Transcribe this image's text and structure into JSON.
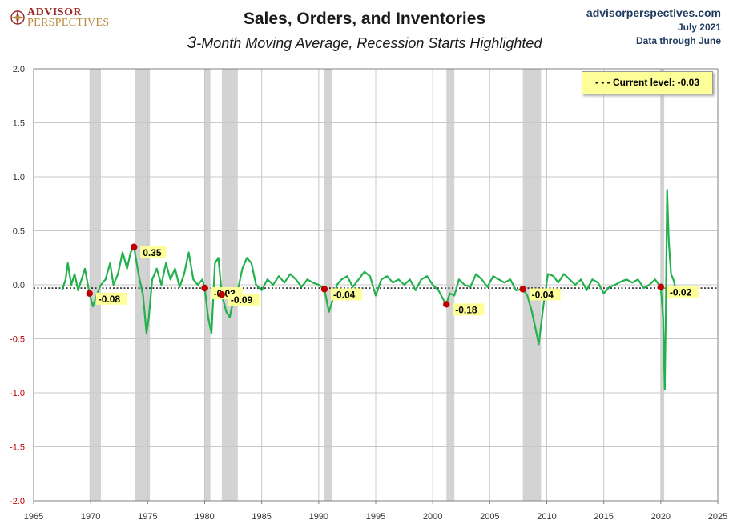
{
  "header": {
    "title": "Sales, Orders, and Inventories",
    "subtitle_lead": "3",
    "subtitle_rest": "-Month Moving Average, Recession Starts Highlighted"
  },
  "logo": {
    "line1": "ADVISOR",
    "line2": "PERSPECTIVES",
    "icon": "compass-rose-icon",
    "color": "#9a2b2b"
  },
  "source": {
    "site": "advisorperspectives.com",
    "date": "July 2021",
    "through": "Data through June"
  },
  "legend": {
    "current_level": "- - -  Current level:  -0.03"
  },
  "chart_data": {
    "type": "line",
    "title": "Sales, Orders, and Inventories",
    "subtitle": "3-Month Moving Average, Recession Starts Highlighted",
    "xlabel": "",
    "ylabel": "",
    "xlim": [
      1965,
      2025
    ],
    "ylim": [
      -2.0,
      2.0
    ],
    "x_ticks": [
      "1965",
      "1970",
      "1975",
      "1980",
      "1985",
      "1990",
      "1995",
      "2000",
      "2005",
      "2010",
      "2015",
      "2020",
      "2025"
    ],
    "y_ticks": [
      "2.0",
      "1.5",
      "1.0",
      "0.5",
      "0.0",
      "-0.5",
      "-1.0",
      "-1.5",
      "-2.0"
    ],
    "grid": true,
    "legend_position": "top-right",
    "current_level": -0.03,
    "colors": {
      "line": "#22b14c",
      "marker": "#c00000",
      "recession": "#d3d3d3",
      "label_bg": "#ffff99",
      "grid": "#c8c8c8"
    },
    "recessions": [
      [
        1969.9,
        1970.9
      ],
      [
        1973.9,
        1975.2
      ],
      [
        1980.0,
        1980.5
      ],
      [
        1981.5,
        1982.9
      ],
      [
        1990.5,
        1991.2
      ],
      [
        2001.2,
        2001.9
      ],
      [
        2007.9,
        2009.5
      ],
      [
        2020.0,
        2020.3
      ]
    ],
    "recession_starts": [
      {
        "x": 1969.9,
        "value": -0.08,
        "label": "-0.08"
      },
      {
        "x": 1973.8,
        "value": 0.35,
        "label": "0.35"
      },
      {
        "x": 1980.0,
        "value": -0.03,
        "label": "-0.03"
      },
      {
        "x": 1981.5,
        "value": -0.09,
        "label": "-0.09"
      },
      {
        "x": 1990.5,
        "value": -0.04,
        "label": "-0.04"
      },
      {
        "x": 2001.2,
        "value": -0.18,
        "label": "-0.18"
      },
      {
        "x": 2007.9,
        "value": -0.04,
        "label": "-0.04"
      },
      {
        "x": 2020.0,
        "value": -0.02,
        "label": "-0.02"
      }
    ],
    "series": [
      {
        "x": [
          1967.5,
          1967.8,
          1968.0,
          1968.3,
          1968.6,
          1968.9,
          1969.2,
          1969.5,
          1969.9,
          1970.2,
          1970.5,
          1970.9,
          1971.3,
          1971.7,
          1972.0,
          1972.4,
          1972.8,
          1973.2,
          1973.5,
          1973.8,
          1974.2,
          1974.6,
          1974.9,
          1975.1,
          1975.4,
          1975.8,
          1976.2,
          1976.6,
          1977.0,
          1977.4,
          1977.8,
          1978.2,
          1978.6,
          1979.0,
          1979.4,
          1979.8,
          1980.0,
          1980.3,
          1980.6,
          1980.9,
          1981.2,
          1981.5,
          1981.9,
          1982.2,
          1982.5,
          1982.9,
          1983.3,
          1983.7,
          1984.1,
          1984.5,
          1985.0,
          1985.5,
          1986.0,
          1986.5,
          1987.0,
          1987.5,
          1988.0,
          1988.5,
          1989.0,
          1989.5,
          1990.0,
          1990.5,
          1990.9,
          1991.2,
          1991.6,
          1992.0,
          1992.5,
          1993.0,
          1993.5,
          1994.0,
          1994.5,
          1995.0,
          1995.5,
          1996.0,
          1996.5,
          1997.0,
          1997.5,
          1998.0,
          1998.5,
          1999.0,
          1999.5,
          2000.0,
          2000.5,
          2001.0,
          2001.2,
          2001.5,
          2001.9,
          2002.3,
          2002.8,
          2003.3,
          2003.8,
          2004.3,
          2004.8,
          2005.3,
          2005.8,
          2006.3,
          2006.8,
          2007.3,
          2007.9,
          2008.3,
          2008.7,
          2009.0,
          2009.3,
          2009.7,
          2010.1,
          2010.6,
          2011.0,
          2011.5,
          2012.0,
          2012.5,
          2013.0,
          2013.5,
          2014.0,
          2014.5,
          2015.0,
          2015.5,
          2016.0,
          2016.5,
          2017.0,
          2017.5,
          2018.0,
          2018.5,
          2019.0,
          2019.5,
          2020.0,
          2020.2,
          2020.35,
          2020.45,
          2020.55,
          2020.7,
          2020.9,
          2021.1,
          2021.3
        ],
        "values": [
          -0.05,
          0.05,
          0.2,
          0.0,
          0.1,
          -0.05,
          0.05,
          0.15,
          -0.08,
          -0.2,
          -0.1,
          0.0,
          0.05,
          0.2,
          0.0,
          0.1,
          0.3,
          0.15,
          0.3,
          0.35,
          0.1,
          -0.1,
          -0.45,
          -0.3,
          0.05,
          0.15,
          0.0,
          0.2,
          0.05,
          0.15,
          -0.02,
          0.1,
          0.3,
          0.05,
          0.0,
          0.05,
          -0.03,
          -0.3,
          -0.45,
          0.2,
          0.25,
          -0.09,
          -0.25,
          -0.3,
          -0.15,
          -0.05,
          0.15,
          0.25,
          0.2,
          0.0,
          -0.05,
          0.05,
          0.0,
          0.08,
          0.02,
          0.1,
          0.05,
          -0.02,
          0.05,
          0.02,
          0.0,
          -0.04,
          -0.25,
          -0.15,
          0.0,
          0.05,
          0.08,
          -0.02,
          0.05,
          0.12,
          0.08,
          -0.1,
          0.05,
          0.08,
          0.02,
          0.05,
          0.0,
          0.05,
          -0.05,
          0.05,
          0.08,
          0.0,
          -0.05,
          -0.15,
          -0.18,
          -0.08,
          -0.1,
          0.05,
          0.0,
          -0.02,
          0.1,
          0.05,
          -0.02,
          0.08,
          0.05,
          0.02,
          0.05,
          -0.05,
          -0.04,
          -0.1,
          -0.25,
          -0.4,
          -0.55,
          -0.2,
          0.1,
          0.08,
          0.02,
          0.1,
          0.05,
          0.0,
          0.05,
          -0.05,
          0.05,
          0.02,
          -0.08,
          -0.02,
          0.0,
          0.03,
          0.05,
          0.02,
          0.05,
          -0.03,
          0.0,
          0.05,
          -0.02,
          -0.3,
          -0.97,
          -0.2,
          0.88,
          0.4,
          0.1,
          0.05,
          -0.03
        ]
      }
    ]
  }
}
